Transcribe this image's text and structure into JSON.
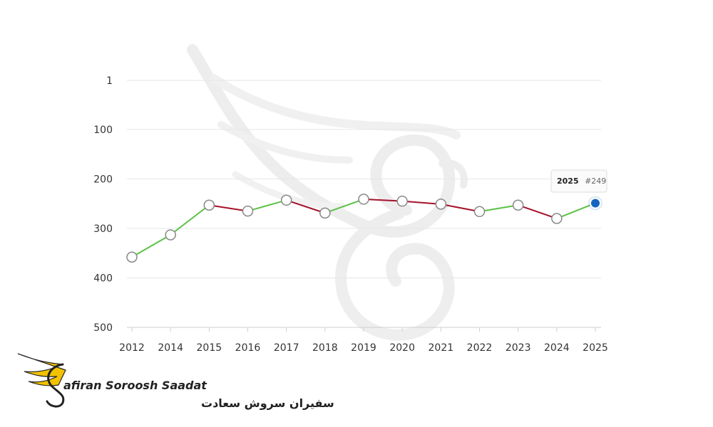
{
  "chart_data": {
    "type": "line",
    "y_reversed": true,
    "ylim": [
      1,
      500
    ],
    "y_ticks": [
      1,
      100,
      200,
      300,
      400,
      500
    ],
    "categories": [
      "2012",
      "2014",
      "2015",
      "2016",
      "2017",
      "2018",
      "2019",
      "2020",
      "2021",
      "2022",
      "2023",
      "2024",
      "2025"
    ],
    "values": [
      358,
      313,
      253,
      265,
      243,
      269,
      241,
      245,
      251,
      266,
      253,
      280,
      249
    ],
    "up_color": "#5cc146",
    "down_color": "#a5122a",
    "highlight_color": "#1565c0",
    "grid": true,
    "tooltip": {
      "year": "2025",
      "rank": "#249"
    }
  },
  "logo": {
    "name_en": "afiran Soroosh Saadat",
    "name_fa": "سفیران سروش سعادت",
    "accent_color": "#f2c200"
  }
}
